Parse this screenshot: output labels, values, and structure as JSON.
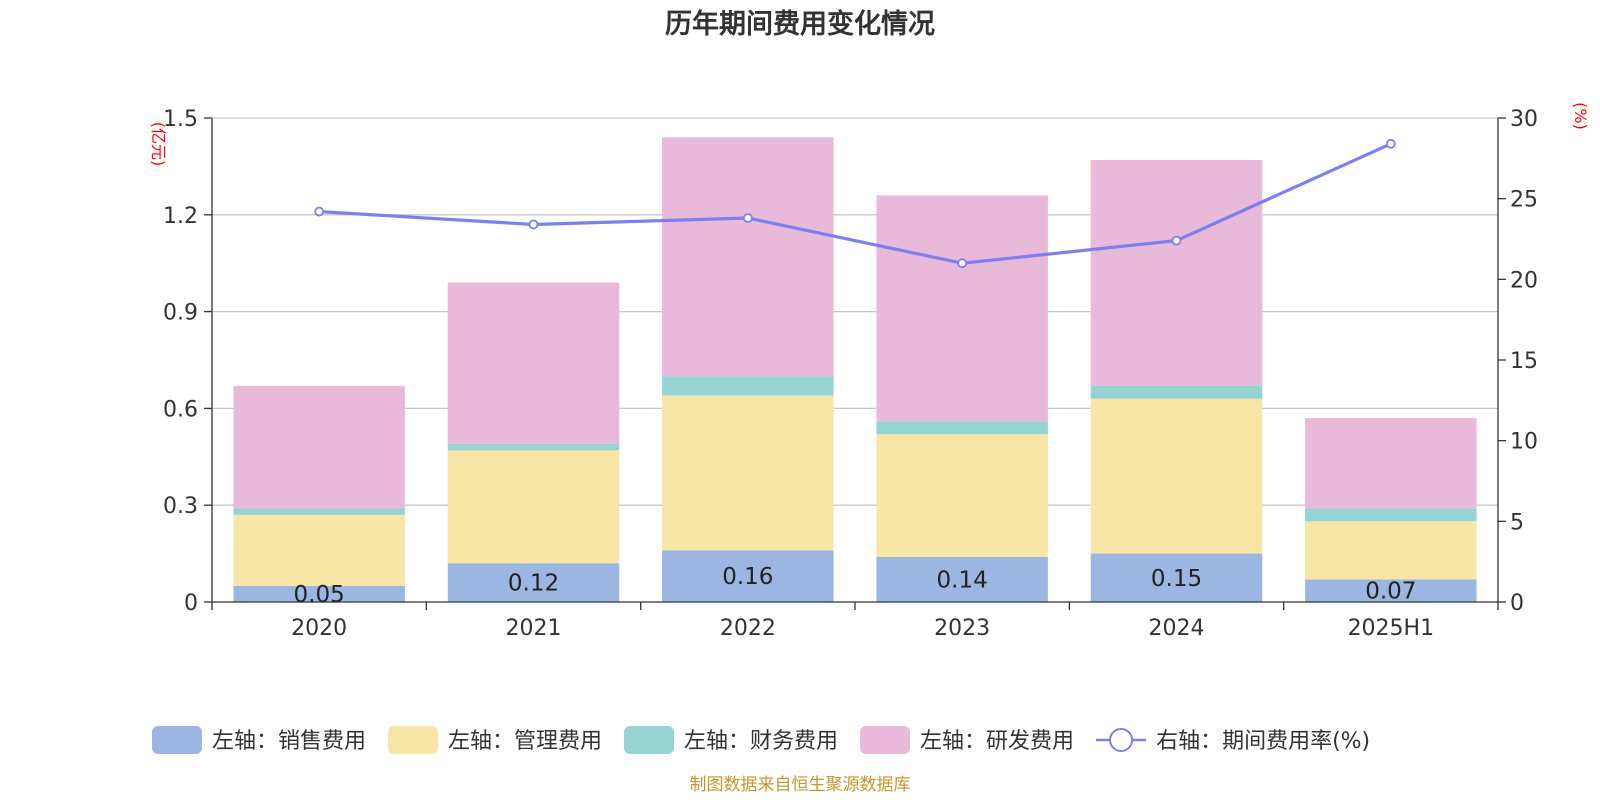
{
  "chart_data": {
    "type": "bar",
    "title": "历年期间费用变化情况",
    "categories": [
      "2020",
      "2021",
      "2022",
      "2023",
      "2024",
      "2025H1"
    ],
    "left_axis": {
      "unit": "(亿元)",
      "ylim": [
        0,
        1.5
      ],
      "ticks": [
        "0",
        "0.3",
        "0.6",
        "0.9",
        "1.2",
        "1.5"
      ]
    },
    "right_axis": {
      "unit": "(%)",
      "ylim": [
        0,
        30
      ],
      "ticks": [
        "0",
        "5",
        "10",
        "15",
        "20",
        "25",
        "30"
      ]
    },
    "stacked": true,
    "series": [
      {
        "name": "左轴：销售费用",
        "type": "bar",
        "axis": "left",
        "color": "#9bb7e1",
        "values": [
          0.05,
          0.12,
          0.16,
          0.14,
          0.15,
          0.07
        ],
        "labels": [
          "0.05",
          "0.12",
          "0.16",
          "0.14",
          "0.15",
          "0.07"
        ]
      },
      {
        "name": "左轴：管理费用",
        "type": "bar",
        "axis": "left",
        "color": "#f7e6a6",
        "values": [
          0.22,
          0.35,
          0.48,
          0.38,
          0.48,
          0.18
        ]
      },
      {
        "name": "左轴：财务费用",
        "type": "bar",
        "axis": "left",
        "color": "#96d4d4",
        "values": [
          0.02,
          0.02,
          0.06,
          0.04,
          0.04,
          0.04
        ]
      },
      {
        "name": "左轴：研发费用",
        "type": "bar",
        "axis": "left",
        "color": "#e8b9d9",
        "values": [
          0.38,
          0.5,
          0.74,
          0.7,
          0.7,
          0.28
        ]
      },
      {
        "name": "右轴：期间费用率(%)",
        "type": "line",
        "axis": "right",
        "color": "#7b7ff0",
        "values": [
          24.2,
          23.4,
          23.8,
          21.0,
          22.4,
          28.4
        ]
      }
    ],
    "grid": true,
    "legend_position": "bottom"
  },
  "footer_text": "制图数据来自恒生聚源数据库"
}
